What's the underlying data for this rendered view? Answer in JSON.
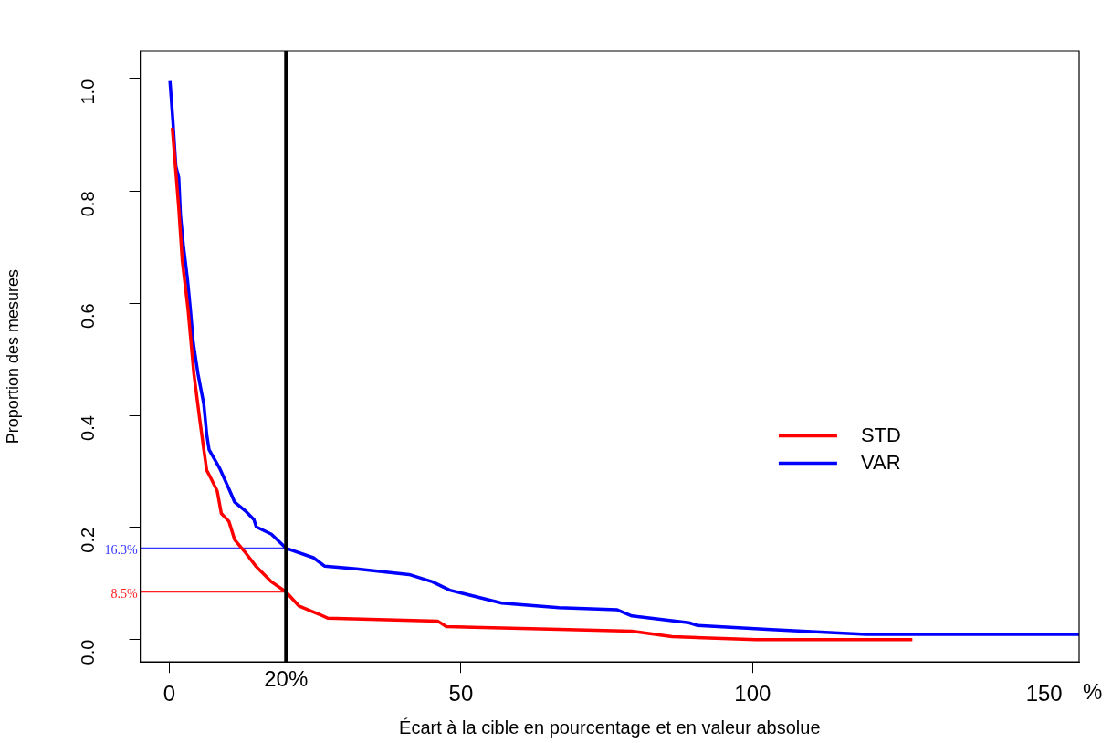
{
  "chart_data": {
    "type": "line",
    "xlabel": "Écart à la cible en pourcentage et en valeur absolue",
    "ylabel": "Proportion des mesures",
    "xlim": [
      -5,
      156
    ],
    "ylim": [
      -0.04,
      1.05
    ],
    "xticks": [
      0,
      50,
      100,
      150
    ],
    "yticks": [
      {
        "value": 0,
        "label": "0.0"
      },
      {
        "value": 0.2,
        "label": "0.2"
      },
      {
        "value": 0.4,
        "label": "0.4"
      },
      {
        "value": 0.6,
        "label": "0.6"
      },
      {
        "value": 0.8,
        "label": "0.8"
      },
      {
        "value": 1,
        "label": "1.0"
      }
    ],
    "grid": false,
    "legend": "right",
    "marker": "none",
    "line_style": "solid",
    "series": [
      {
        "name": "STD",
        "color": "#ff0000",
        "x": [
          0.5,
          1.6,
          2.2,
          3.2,
          4.2,
          5.2,
          5.9,
          6.4,
          7.2,
          8.2,
          8.9,
          10.2,
          11.2,
          12.9,
          14.9,
          17.5,
          20,
          22.2,
          25.7,
          27.2,
          46,
          47.5,
          66.8,
          79.3,
          86.2,
          100.6,
          127.4
        ],
        "values": [
          0.913,
          0.771,
          0.677,
          0.589,
          0.474,
          0.393,
          0.339,
          0.302,
          0.286,
          0.265,
          0.225,
          0.211,
          0.178,
          0.157,
          0.13,
          0.103,
          0.085,
          0.06,
          0.045,
          0.038,
          0.033,
          0.023,
          0.018,
          0.015,
          0.005,
          0,
          0
        ]
      },
      {
        "name": "VAR",
        "color": "#0000ff",
        "x": [
          0.1,
          0.6,
          1.1,
          1.6,
          1.9,
          2.4,
          3.1,
          3.6,
          4.1,
          4.9,
          5.9,
          6.4,
          6.8,
          8.6,
          10.2,
          11.2,
          13.2,
          14.5,
          14.9,
          17.5,
          20,
          24.7,
          26.6,
          32.1,
          41.1,
          45.1,
          48.1,
          57,
          66.8,
          76.8,
          79.3,
          89.1,
          90.6,
          102.5,
          114,
          119.5,
          156
        ],
        "values": [
          0.997,
          0.926,
          0.845,
          0.825,
          0.757,
          0.703,
          0.643,
          0.589,
          0.529,
          0.474,
          0.42,
          0.366,
          0.339,
          0.306,
          0.269,
          0.245,
          0.228,
          0.214,
          0.201,
          0.188,
          0.163,
          0.146,
          0.131,
          0.126,
          0.116,
          0.103,
          0.088,
          0.065,
          0.057,
          0.053,
          0.042,
          0.03,
          0.025,
          0.018,
          0.012,
          0.009,
          0.009
        ]
      },
      {
        "color": "#3333ff",
        "x": [
          -5,
          20
        ],
        "values": [
          0.163,
          0.163
        ]
      },
      {
        "color": "#ff2020",
        "x": [
          -5,
          20
        ],
        "values": [
          0.085,
          0.085
        ]
      }
    ],
    "ref_lines": [
      {
        "axis": "x",
        "value": 20,
        "label": "20%",
        "color": "#000000"
      }
    ],
    "annotations": [
      "%",
      {
        "text": "16.3%",
        "x": -5,
        "y": 0.163
      },
      {
        "text": "8.5%",
        "x": -5,
        "y": 0.085
      }
    ]
  }
}
